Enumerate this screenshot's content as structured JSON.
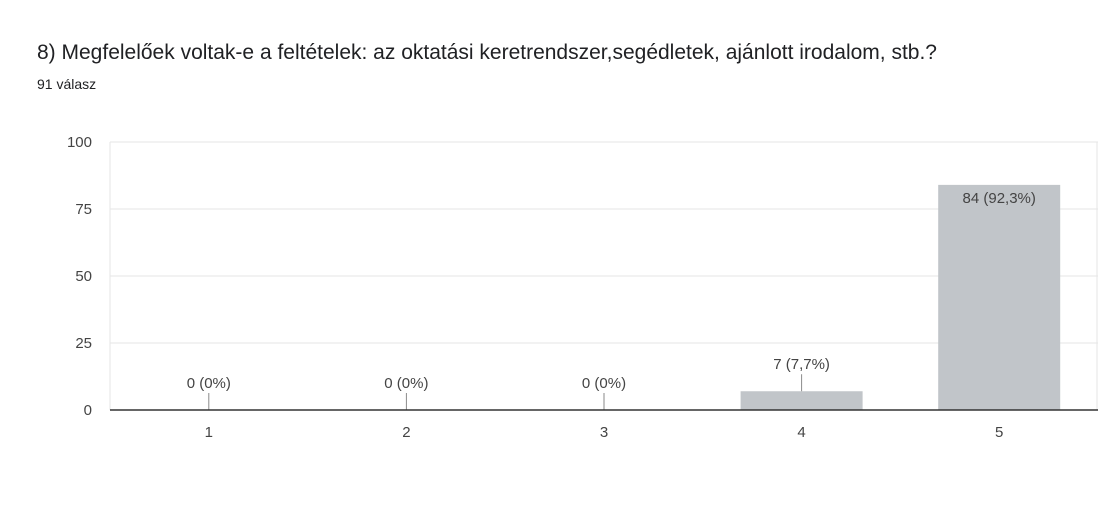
{
  "header": {
    "title": "8) Megfelelőek voltak-e a feltételek: az oktatási keretrendszer,segédletek, ajánlott irodalom, stb.?",
    "responses": "91 válasz"
  },
  "colors": {
    "bar": "#c1c5c9",
    "grid": "#e6e6e6",
    "axis": "#333333",
    "leader": "#8a8a8a",
    "text": "#444444"
  },
  "chart_data": {
    "type": "bar",
    "title": "8) Megfelelőek voltak-e a feltételek: az oktatási keretrendszer,segédletek, ajánlott irodalom, stb.?",
    "xlabel": "",
    "ylabel": "",
    "categories": [
      "1",
      "2",
      "3",
      "4",
      "5"
    ],
    "values": [
      0,
      0,
      0,
      7,
      84
    ],
    "data_labels": [
      "0 (0%)",
      "0 (0%)",
      "0 (0%)",
      "7 (7,7%)",
      "84 (92,3%)"
    ],
    "ylim": [
      0,
      100
    ],
    "yticks": [
      0,
      25,
      50,
      75,
      100
    ],
    "grid": true,
    "legend": "none"
  }
}
